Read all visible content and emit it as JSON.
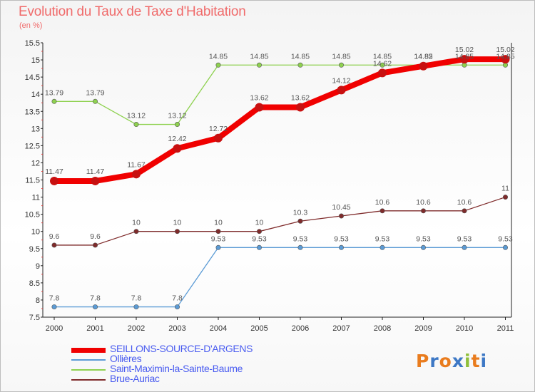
{
  "title": "Evolution du Taux de Taxe d'Habitation",
  "unit": "(en %)",
  "logo": {
    "letters": [
      "P",
      "r",
      "o",
      "x",
      "i",
      "t",
      "i"
    ],
    "colors": [
      "#e97c1e",
      "#3d78c5",
      "#e97c1e",
      "#3d78c5",
      "#8fbf3a",
      "#e97c1e",
      "#3d78c5"
    ]
  },
  "chart_data": {
    "type": "line",
    "title": "Evolution du Taux de Taxe d'Habitation",
    "ylabel": "(en %)",
    "x": [
      "2000",
      "2001",
      "2002",
      "2003",
      "2004",
      "2005",
      "2006",
      "2007",
      "2008",
      "2009",
      "2010",
      "2011"
    ],
    "ylim": [
      7.5,
      15.5
    ],
    "yticks": [
      "7.5",
      "8",
      "8.5",
      "9",
      "9.5",
      "10",
      "10.5",
      "11",
      "11.5",
      "12",
      "12.5",
      "13",
      "13.5",
      "14",
      "14.5",
      "15",
      "15.5"
    ],
    "grid": false,
    "legend_position": "bottom-left",
    "series": [
      {
        "name": "SEILLONS-SOURCE-D'ARGENS",
        "color": "#f00000",
        "values": [
          11.47,
          11.47,
          11.67,
          12.42,
          12.72,
          13.62,
          13.62,
          14.12,
          14.62,
          14.82,
          15.02,
          15.02
        ],
        "labels": [
          "11.47",
          "11.47",
          "11.67",
          "12.42",
          "12.72",
          "13.62",
          "13.62",
          "14.12",
          "14.62",
          "14.82",
          "15.02",
          "15.02"
        ]
      },
      {
        "name": "Ollières",
        "color": "#5b9bd5",
        "values": [
          7.8,
          7.8,
          7.8,
          7.8,
          9.53,
          9.53,
          9.53,
          9.53,
          9.53,
          9.53,
          9.53,
          9.53
        ],
        "labels": [
          "7.8",
          "7.8",
          "7.8",
          "7.8",
          "9.53",
          "9.53",
          "9.53",
          "9.53",
          "9.53",
          "9.53",
          "9.53",
          "9.53"
        ]
      },
      {
        "name": "Saint-Maximin-la-Sainte-Baume",
        "color": "#8ed14f",
        "values": [
          13.79,
          13.79,
          13.12,
          13.12,
          14.85,
          14.85,
          14.85,
          14.85,
          14.85,
          14.85,
          14.85,
          14.85
        ],
        "labels": [
          "13.79",
          "13.79",
          "13.12",
          "13.12",
          "14.85",
          "14.85",
          "14.85",
          "14.85",
          "14.85",
          "14.85",
          "14.85",
          "14.85"
        ]
      },
      {
        "name": "Brue-Auriac",
        "color": "#7f2b2b",
        "values": [
          9.6,
          9.6,
          10,
          10,
          10,
          10,
          10.3,
          10.45,
          10.6,
          10.6,
          10.6,
          11
        ],
        "labels": [
          "9.6",
          "9.6",
          "10",
          "10",
          "10",
          "10",
          "10.3",
          "10.45",
          "10.6",
          "10.6",
          "10.6",
          "11"
        ]
      }
    ]
  }
}
